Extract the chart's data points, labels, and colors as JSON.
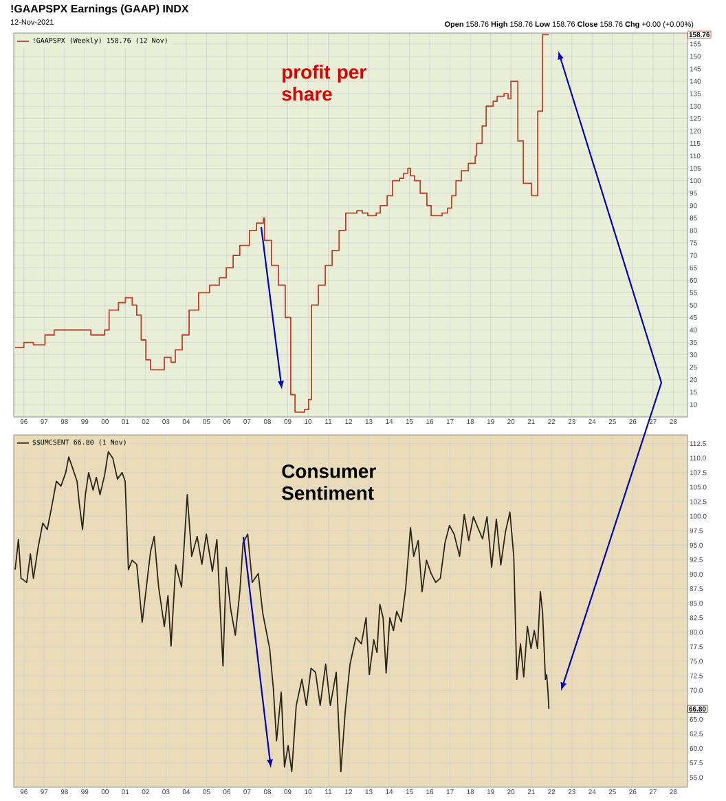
{
  "chart_data": [
    {
      "type": "step",
      "title": "!GAAPSPX Earnings (GAAP) INDX",
      "subtitle": "12-Nov-2021",
      "annotations": [
        "**Open** 158.76 **High** 158.76 **Low** 158.76 **Close** 158.76 **Chg** +0.00 (+0.00%)",
        "profit per share",
        "158.76"
      ],
      "series": [
        {
          "name": "!GAAPSPX (Weekly) 158.76 (12 Nov)",
          "color": "#b8432c",
          "x": [
            1995.57,
            1996.0,
            1996.47,
            1997.04,
            1997.49,
            1998.17,
            1999.3,
            1999.98,
            2000.2,
            2000.66,
            2001.0,
            2001.34,
            2001.56,
            2001.78,
            2002.01,
            2002.24,
            2002.58,
            2002.92,
            2003.25,
            2003.46,
            2003.8,
            2004.14,
            2004.61,
            2005.15,
            2005.63,
            2005.97,
            2006.31,
            2006.64,
            2007.12,
            2007.46,
            2007.8,
            2007.86,
            2008.2,
            2008.54,
            2008.88,
            2009.15,
            2009.36,
            2009.83,
            2010.03,
            2010.17,
            2010.51,
            2010.85,
            2011.19,
            2011.53,
            2011.86,
            2012.41,
            2012.68,
            2012.95,
            2013.36,
            2013.56,
            2013.9,
            2014.17,
            2014.51,
            2014.71,
            2014.92,
            2015.05,
            2015.25,
            2015.53,
            2015.86,
            2016.07,
            2016.61,
            2016.88,
            2017.08,
            2017.29,
            2017.56,
            2017.9,
            2018.24,
            2018.31,
            2018.58,
            2018.78,
            2019.12,
            2019.32,
            2019.66,
            2019.86,
            2020.0,
            2020.34,
            2020.61,
            2021.02,
            2021.32,
            2021.56,
            2021.87
          ],
          "values": [
            33,
            35,
            34,
            38,
            40,
            40,
            38,
            40,
            48,
            51,
            53,
            50,
            46,
            36,
            28,
            24,
            24,
            29,
            27,
            32,
            38,
            48,
            55,
            58,
            61,
            65,
            70,
            74,
            80,
            83,
            85,
            76,
            66,
            58,
            45,
            14,
            7,
            8,
            12,
            50,
            58,
            66,
            72,
            80,
            87,
            88,
            87,
            86,
            87,
            90,
            94,
            100,
            101,
            103,
            105,
            102,
            100,
            95,
            90,
            86,
            87,
            89,
            94,
            100,
            104,
            107,
            110,
            115,
            122,
            130,
            132,
            134,
            135,
            133,
            140,
            116,
            99,
            94,
            128,
            158.76,
            158.76
          ]
        }
      ],
      "xlim": [
        1995.5,
        2028.7
      ],
      "ylim": [
        5,
        159.4
      ],
      "xticks": [
        {
          "value": 1996,
          "label": "96"
        },
        {
          "value": 1997,
          "label": "97"
        },
        {
          "value": 1998,
          "label": "98"
        },
        {
          "value": 1999,
          "label": "99"
        },
        {
          "value": 2000,
          "label": "00"
        },
        {
          "value": 2001,
          "label": "01"
        },
        {
          "value": 2002,
          "label": "02"
        },
        {
          "value": 2003,
          "label": "03"
        },
        {
          "value": 2004,
          "label": "04"
        },
        {
          "value": 2005,
          "label": "05"
        },
        {
          "value": 2006,
          "label": "06"
        },
        {
          "value": 2007,
          "label": "07"
        },
        {
          "value": 2008,
          "label": "08"
        },
        {
          "value": 2009,
          "label": "09"
        },
        {
          "value": 2010,
          "label": "10"
        },
        {
          "value": 2011,
          "label": "11"
        },
        {
          "value": 2012,
          "label": "12"
        },
        {
          "value": 2013,
          "label": "13"
        },
        {
          "value": 2014,
          "label": "14"
        },
        {
          "value": 2015,
          "label": "15"
        },
        {
          "value": 2016,
          "label": "16"
        },
        {
          "value": 2017,
          "label": "17"
        },
        {
          "value": 2018,
          "label": "18"
        },
        {
          "value": 2019,
          "label": "19"
        },
        {
          "value": 2020,
          "label": "20"
        },
        {
          "value": 2021,
          "label": "21"
        },
        {
          "value": 2022,
          "label": "22"
        },
        {
          "value": 2023,
          "label": "23"
        },
        {
          "value": 2024,
          "label": "24"
        },
        {
          "value": 2025,
          "label": "25"
        },
        {
          "value": 2026,
          "label": "26"
        },
        {
          "value": 2027,
          "label": "27"
        },
        {
          "value": 2028,
          "label": "28"
        }
      ],
      "yticks": [
        10,
        15,
        20,
        25,
        30,
        35,
        40,
        45,
        50,
        55,
        60,
        65,
        70,
        75,
        80,
        85,
        90,
        95,
        100,
        105,
        110,
        115,
        120,
        125,
        130,
        135,
        140,
        145,
        150,
        155
      ],
      "grid": true,
      "legend": "top left"
    },
    {
      "type": "line",
      "annotations": [
        "Consumer Sentiment",
        "66.80"
      ],
      "series": [
        {
          "name": "$$UMCSENT 66.80 (1 Nov)",
          "color": "#2b2418",
          "x": [
            1995.57,
            1995.73,
            1995.86,
            1996.14,
            1996.32,
            1996.47,
            1996.7,
            1996.93,
            1997.15,
            1997.38,
            1997.6,
            1997.83,
            1998.06,
            1998.21,
            1998.4,
            1998.62,
            1998.73,
            1998.89,
            1999.03,
            1999.19,
            1999.41,
            1999.57,
            1999.75,
            1999.98,
            2000.16,
            2000.38,
            2000.61,
            2000.84,
            2000.99,
            2001.15,
            2001.33,
            2001.56,
            2001.83,
            2002.01,
            2002.24,
            2002.42,
            2002.64,
            2002.92,
            2003.1,
            2003.25,
            2003.48,
            2003.77,
            2004.05,
            2004.27,
            2004.54,
            2004.77,
            2004.99,
            2005.29,
            2005.51,
            2005.63,
            2005.81,
            2005.97,
            2006.19,
            2006.42,
            2006.64,
            2006.8,
            2007.03,
            2007.25,
            2007.55,
            2007.77,
            2008.11,
            2008.29,
            2008.45,
            2008.68,
            2008.84,
            2009.02,
            2009.2,
            2009.42,
            2009.7,
            2009.92,
            2010.15,
            2010.37,
            2010.6,
            2010.87,
            2011.1,
            2011.39,
            2011.62,
            2011.84,
            2012.07,
            2012.36,
            2012.63,
            2012.86,
            2013.02,
            2013.24,
            2013.4,
            2013.54,
            2013.7,
            2013.85,
            2014.03,
            2014.21,
            2014.37,
            2014.6,
            2014.82,
            2015.05,
            2015.21,
            2015.43,
            2015.62,
            2015.84,
            2016.07,
            2016.29,
            2016.52,
            2016.75,
            2016.97,
            2017.2,
            2017.47,
            2017.7,
            2017.92,
            2018.15,
            2018.37,
            2018.6,
            2018.82,
            2019.05,
            2019.28,
            2019.5,
            2019.73,
            2019.95,
            2020.14,
            2020.29,
            2020.47,
            2020.63,
            2020.81,
            2020.99,
            2021.15,
            2021.31,
            2021.45,
            2021.56,
            2021.7,
            2021.76,
            2021.82,
            2021.87
          ],
          "values": [
            90.8,
            96,
            89.3,
            88.6,
            93.5,
            89.3,
            94.6,
            98.8,
            97.7,
            101.8,
            106,
            105.2,
            107.5,
            110.2,
            108.3,
            106,
            102.2,
            97.7,
            103.7,
            107.5,
            104.5,
            106.7,
            103.7,
            107.1,
            111.1,
            110,
            106.4,
            107.5,
            106,
            90.8,
            92.4,
            91.7,
            81.7,
            87,
            93.9,
            96.5,
            87.8,
            81,
            86.3,
            77.6,
            91.6,
            87.8,
            103.7,
            93.1,
            96.5,
            91.7,
            96.9,
            90.5,
            96,
            87,
            74.2,
            91.2,
            84,
            79.5,
            87,
            95.4,
            96.9,
            88.6,
            90.1,
            83.3,
            77.2,
            70.4,
            61.3,
            69.7,
            56.8,
            60.5,
            56,
            67.4,
            71.9,
            67.4,
            73.8,
            73.1,
            67.4,
            74.5,
            67.4,
            73.1,
            56,
            66.6,
            74.5,
            79.1,
            78,
            82.5,
            72.7,
            78.7,
            76.5,
            84.8,
            82.5,
            73,
            82.5,
            80.3,
            83.6,
            81.8,
            87.8,
            98,
            93.1,
            95.8,
            87,
            92.4,
            90.1,
            88.6,
            89.3,
            95.4,
            98.4,
            96.9,
            93.1,
            100.3,
            95.8,
            99.9,
            98,
            96.1,
            99.9,
            91.2,
            99.5,
            91.6,
            97.3,
            100.7,
            93.1,
            71.9,
            78,
            72.3,
            81,
            77.2,
            80.3,
            77.2,
            87,
            83.3,
            71.9,
            72.7,
            70,
            66.8
          ]
        }
      ],
      "xlim": [
        1995.5,
        2028.7
      ],
      "ylim": [
        53.3,
        114
      ],
      "xticks": [
        {
          "value": 1996,
          "label": "96"
        },
        {
          "value": 1997,
          "label": "97"
        },
        {
          "value": 1998,
          "label": "98"
        },
        {
          "value": 1999,
          "label": "99"
        },
        {
          "value": 2000,
          "label": "00"
        },
        {
          "value": 2001,
          "label": "01"
        },
        {
          "value": 2002,
          "label": "02"
        },
        {
          "value": 2003,
          "label": "03"
        },
        {
          "value": 2004,
          "label": "04"
        },
        {
          "value": 2005,
          "label": "05"
        },
        {
          "value": 2006,
          "label": "06"
        },
        {
          "value": 2007,
          "label": "07"
        },
        {
          "value": 2008,
          "label": "08"
        },
        {
          "value": 2009,
          "label": "09"
        },
        {
          "value": 2010,
          "label": "10"
        },
        {
          "value": 2011,
          "label": "11"
        },
        {
          "value": 2012,
          "label": "12"
        },
        {
          "value": 2013,
          "label": "13"
        },
        {
          "value": 2014,
          "label": "14"
        },
        {
          "value": 2015,
          "label": "15"
        },
        {
          "value": 2016,
          "label": "16"
        },
        {
          "value": 2017,
          "label": "17"
        },
        {
          "value": 2018,
          "label": "18"
        },
        {
          "value": 2019,
          "label": "19"
        },
        {
          "value": 2020,
          "label": "20"
        },
        {
          "value": 2021,
          "label": "21"
        },
        {
          "value": 2022,
          "label": "22"
        },
        {
          "value": 2023,
          "label": "23"
        },
        {
          "value": 2024,
          "label": "24"
        },
        {
          "value": 2025,
          "label": "25"
        },
        {
          "value": 2026,
          "label": "26"
        },
        {
          "value": 2027,
          "label": "27"
        },
        {
          "value": 2028,
          "label": "28"
        }
      ],
      "yticks": [
        {
          "value": 55,
          "label": "55.0"
        },
        57.5,
        {
          "value": 60,
          "label": "60.0"
        },
        62.5,
        {
          "value": 65,
          "label": "65.0"
        },
        {
          "value": 67.5,
          "label": null
        },
        {
          "value": 70,
          "label": "70.0"
        },
        72.5,
        {
          "value": 75,
          "label": "75.0"
        },
        77.5,
        {
          "value": 80,
          "label": "80.0"
        },
        82.5,
        {
          "value": 85,
          "label": "85.0"
        },
        87.5,
        {
          "value": 90,
          "label": "90.0"
        },
        92.5,
        {
          "value": 95,
          "label": "95.0"
        },
        97.5,
        {
          "value": 100,
          "label": "100.0"
        },
        102.5,
        {
          "value": 105,
          "label": "105.0"
        },
        107.5,
        {
          "value": 110,
          "label": "110.0"
        },
        112.5
      ],
      "grid": true,
      "legend": "top left"
    }
  ]
}
